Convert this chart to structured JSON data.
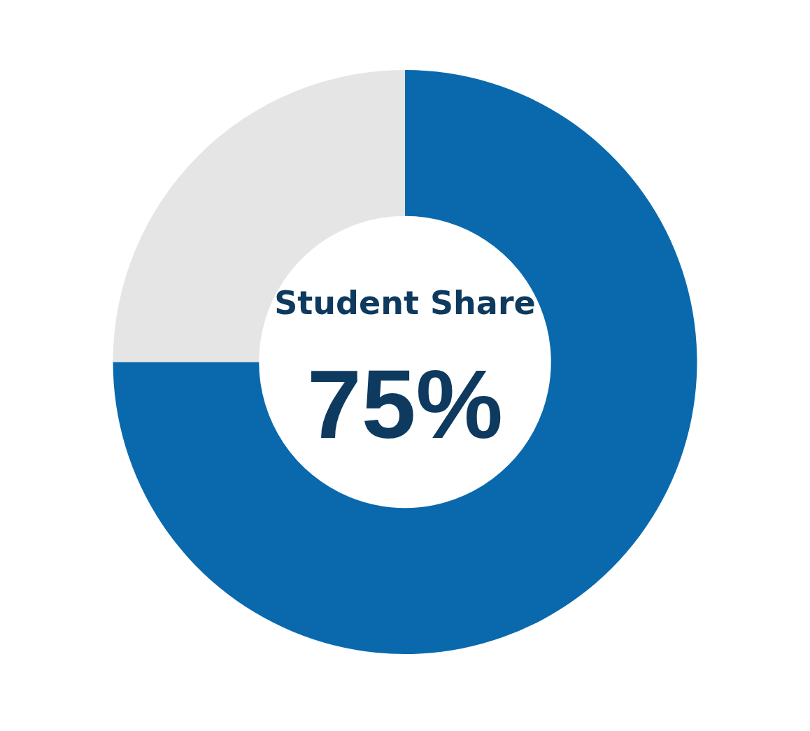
{
  "chart_data": {
    "type": "donut",
    "title": "Student Share",
    "categories": [
      null,
      null
    ],
    "values": [
      75,
      25
    ],
    "colors": [
      "#0a69ad",
      "#e5e5e5"
    ],
    "value_labels": [
      "75%",
      null
    ],
    "legend": false
  }
}
